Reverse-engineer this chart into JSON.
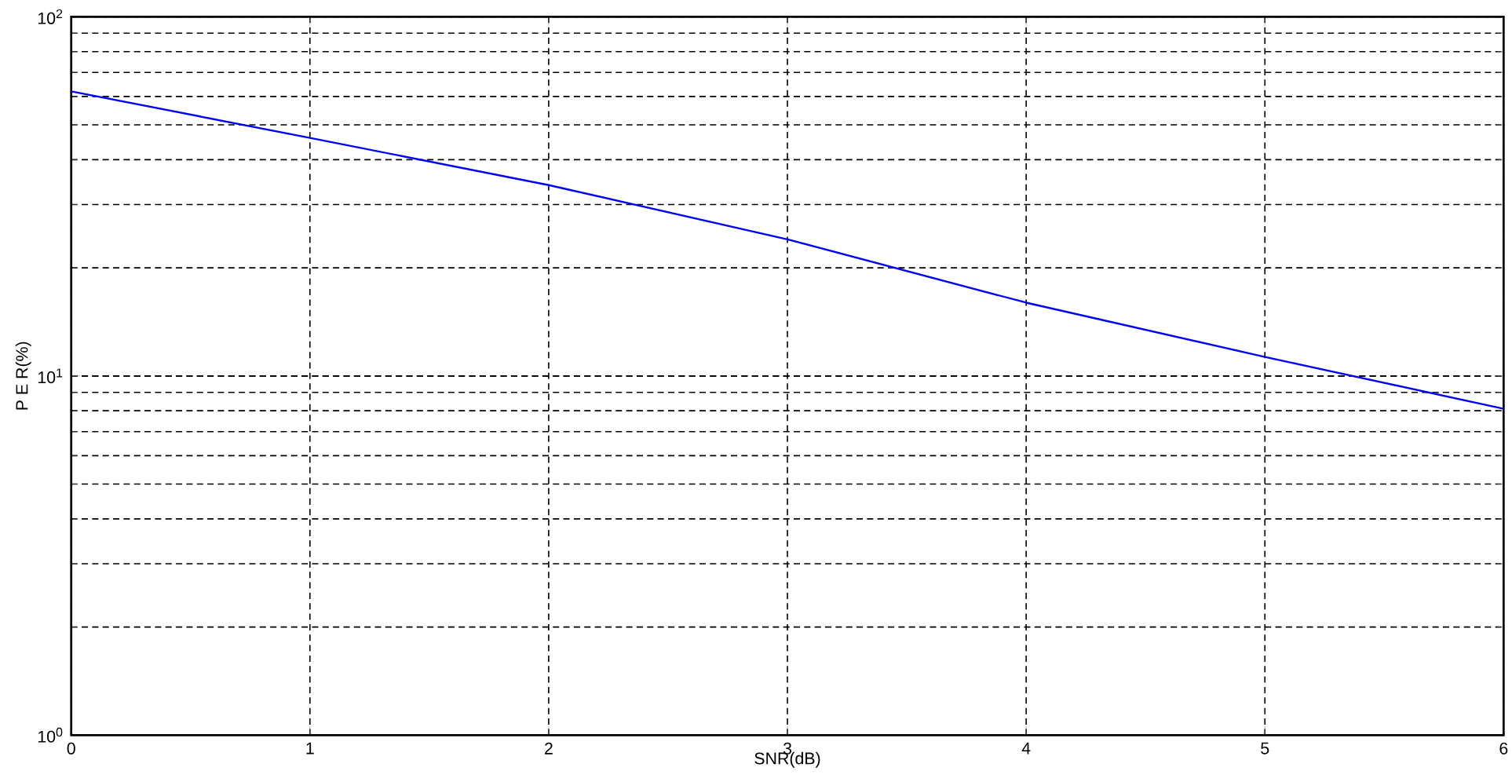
{
  "chart_data": {
    "type": "line",
    "xlabel": "SNR(dB)",
    "ylabel": "P E R(%)",
    "x": [
      0,
      1,
      2,
      3,
      4,
      5,
      6
    ],
    "series": [
      {
        "color": "#0000ff",
        "values": [
          62,
          46,
          34,
          24,
          16,
          11.3,
          8.1
        ]
      }
    ],
    "xlim": [
      0,
      6
    ],
    "xticks": [
      0,
      1,
      2,
      3,
      4,
      5,
      6
    ],
    "ylim": [
      1,
      100
    ],
    "yticks": [
      {
        "value": 1,
        "label": "10$^{0}$"
      },
      {
        "value": 10,
        "label": "10$^{1}$"
      },
      {
        "value": 100,
        "label": "10$^{2}$"
      }
    ],
    "log": "y",
    "grid": true,
    "marker": "none",
    "line_style": "solid"
  }
}
